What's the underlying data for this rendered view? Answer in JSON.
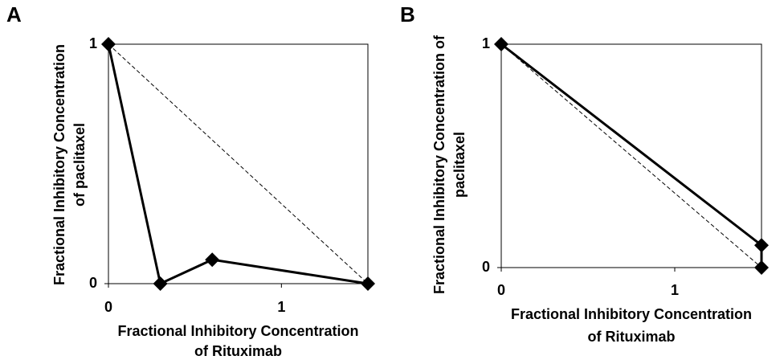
{
  "chart_data": [
    {
      "type": "line",
      "panel": "A",
      "x_label": [
        "Fractional Inhibitory Concentration",
        "of Rituximab"
      ],
      "y_label": [
        "Fractional Inhibitory Concentration",
        "of paclitaxel"
      ],
      "xlim": [
        0,
        1.5
      ],
      "ylim": [
        0,
        1
      ],
      "xticks": [
        0,
        1
      ],
      "yticks": [
        0,
        1
      ],
      "series": [
        {
          "color": "#000000",
          "style": "solid",
          "marker": "diamond",
          "x": [
            0,
            0.3,
            0.6,
            1.5
          ],
          "values": [
            1,
            0,
            0.1,
            0
          ]
        },
        {
          "color": "#000000",
          "style": "dashed",
          "x": [
            0,
            1.5
          ],
          "values": [
            1,
            0
          ]
        }
      ]
    },
    {
      "type": "line",
      "panel": "B",
      "x_label": [
        "Fractional Inhibitory Concentration",
        "of Rituximab"
      ],
      "y_label": [
        "Fractional Inhibitory Concentration of",
        "paclitaxel"
      ],
      "xlim": [
        0,
        1.5
      ],
      "ylim": [
        0,
        1
      ],
      "xticks": [
        0,
        1
      ],
      "yticks": [
        0,
        1
      ],
      "series": [
        {
          "color": "#000000",
          "style": "solid",
          "marker": "diamond",
          "x": [
            0,
            1.5,
            1.5
          ],
          "values": [
            1,
            0.1,
            0
          ]
        },
        {
          "color": "#000000",
          "style": "dashed",
          "x": [
            0,
            1.5
          ],
          "values": [
            1,
            0
          ]
        }
      ]
    }
  ]
}
